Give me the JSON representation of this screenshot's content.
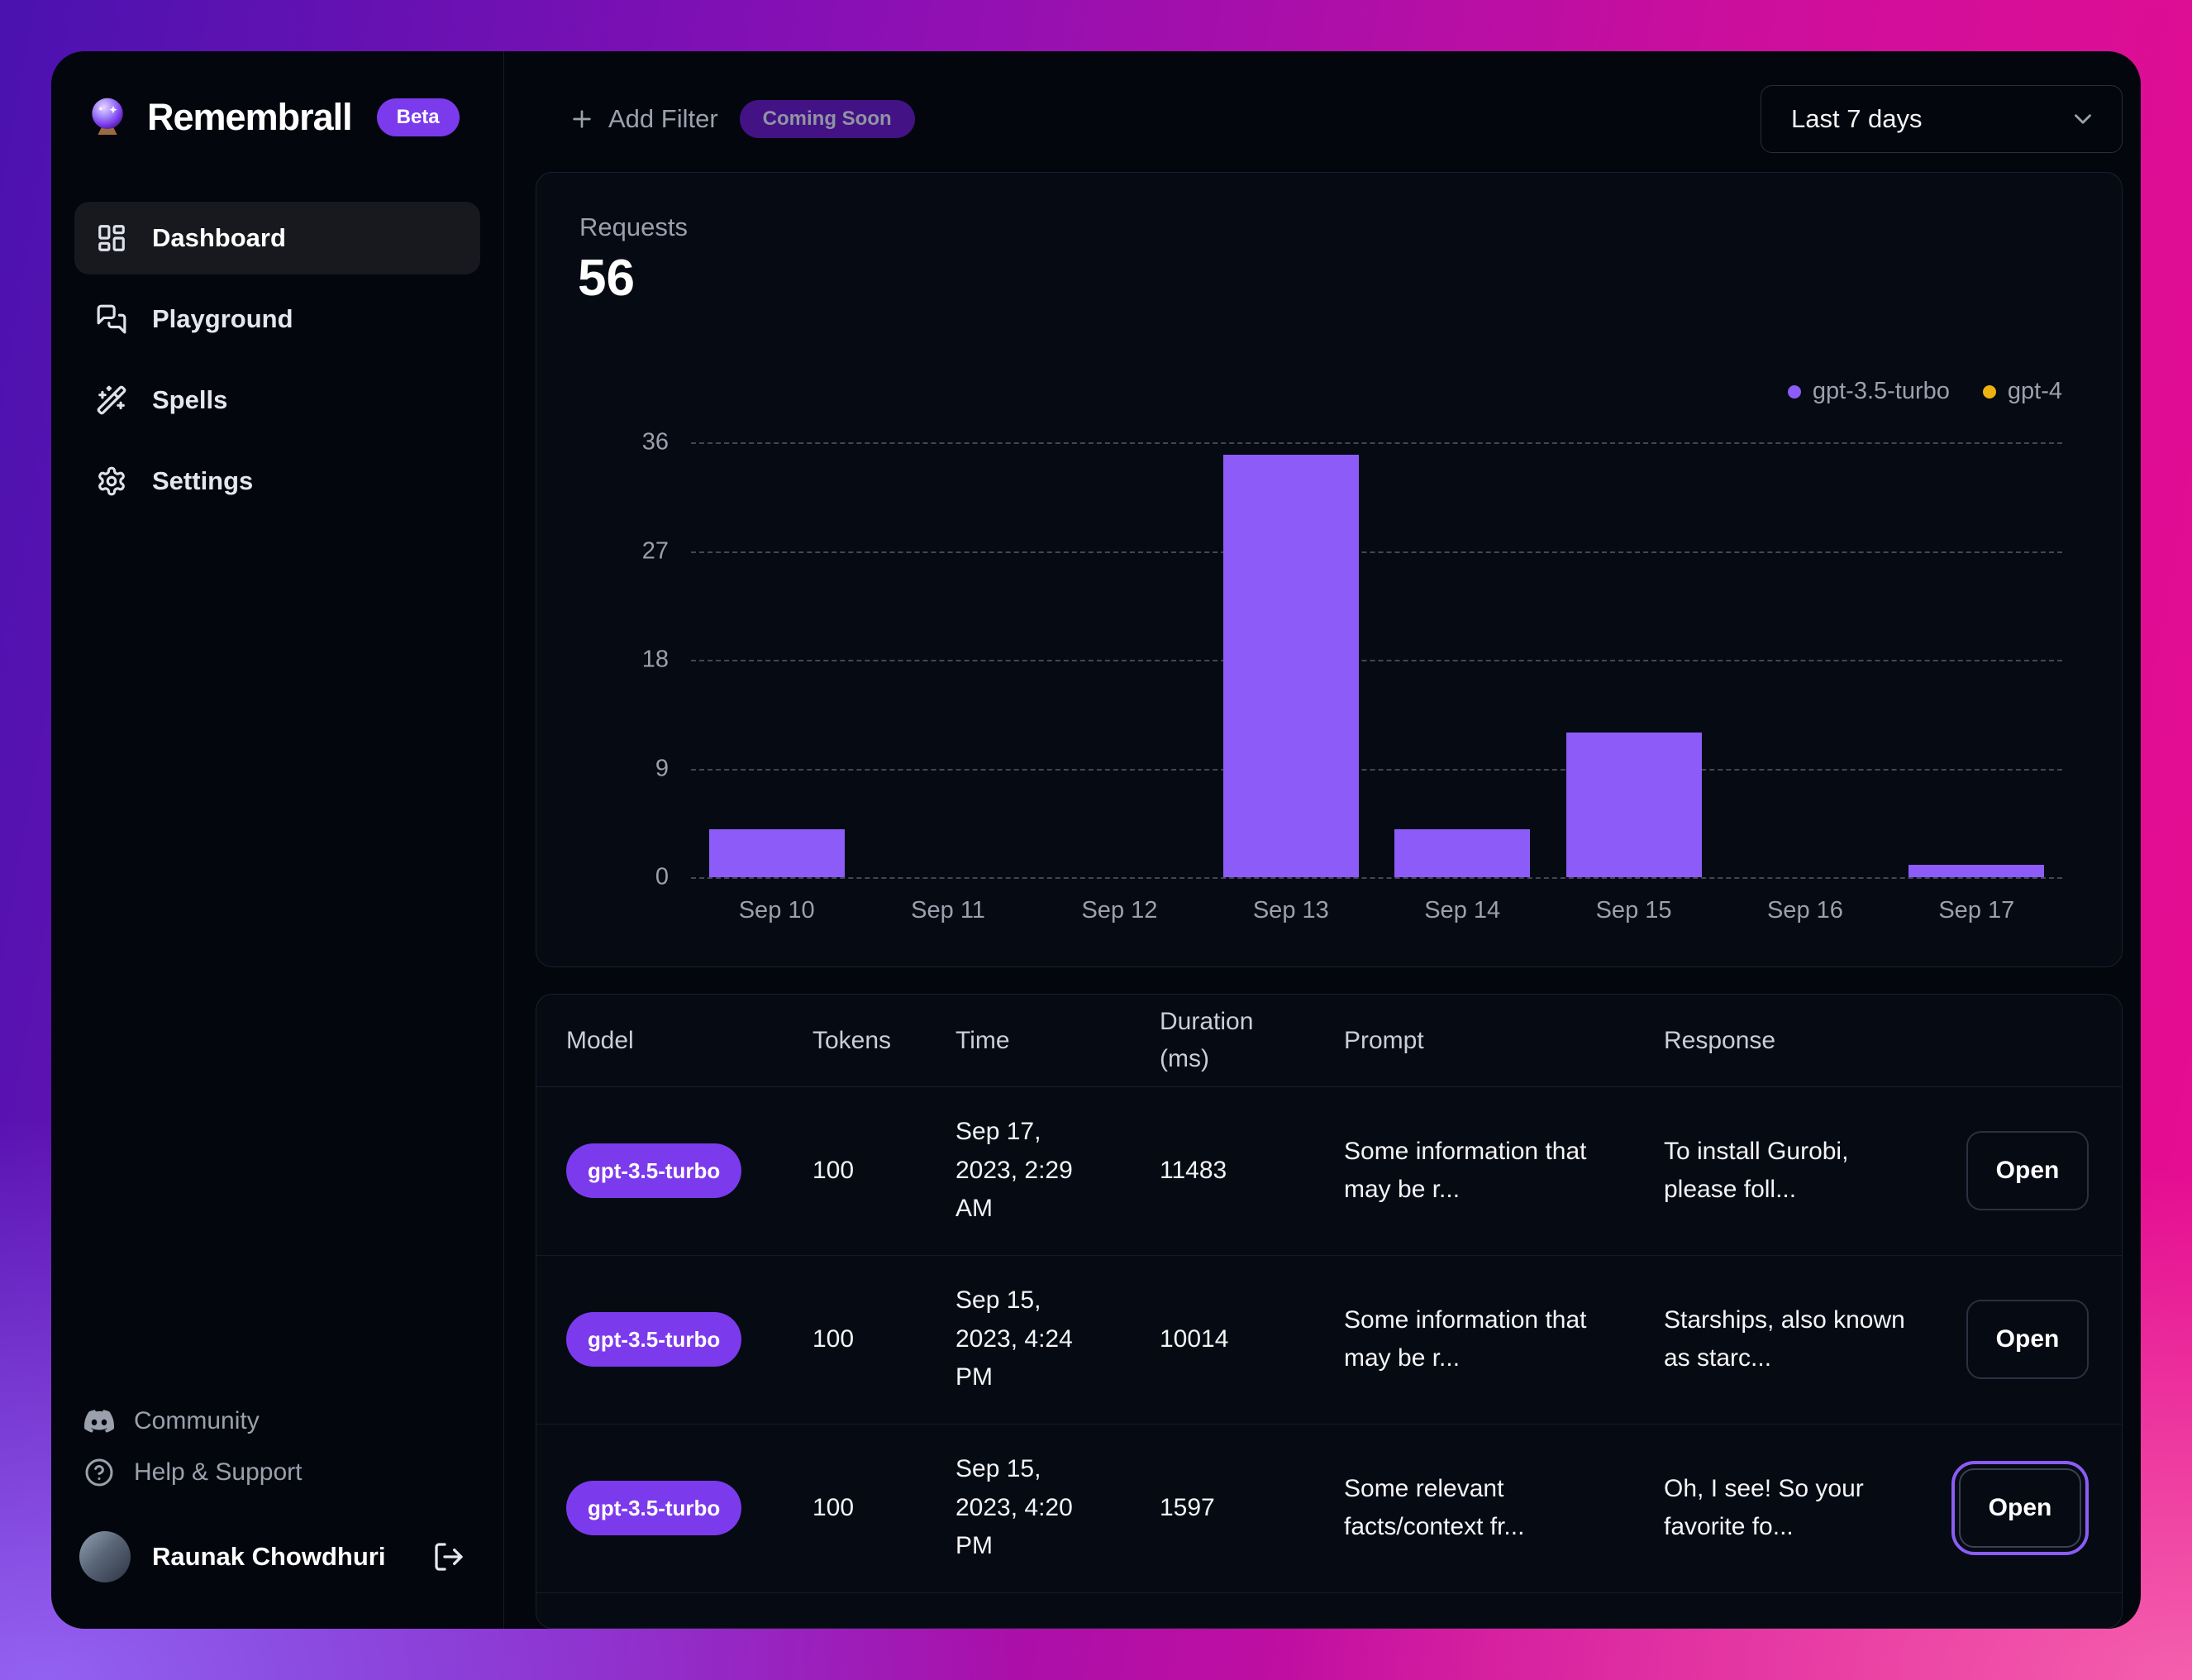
{
  "app": {
    "name": "Remembrall",
    "badge": "Beta"
  },
  "sidebar": {
    "items": [
      {
        "label": "Dashboard",
        "active": true
      },
      {
        "label": "Playground",
        "active": false
      },
      {
        "label": "Spells",
        "active": false
      },
      {
        "label": "Settings",
        "active": false
      }
    ],
    "footer_items": [
      {
        "label": "Community"
      },
      {
        "label": "Help & Support"
      }
    ],
    "user": {
      "name": "Raunak Chowdhuri"
    }
  },
  "topbar": {
    "add_filter_label": "Add Filter",
    "coming_soon_label": "Coming Soon",
    "range_label": "Last 7 days"
  },
  "stats": {
    "requests_label": "Requests",
    "requests_value": "56"
  },
  "chart_data": {
    "type": "bar",
    "title": "Requests",
    "categories": [
      "Sep 10",
      "Sep 11",
      "Sep 12",
      "Sep 13",
      "Sep 14",
      "Sep 15",
      "Sep 16",
      "Sep 17"
    ],
    "series": [
      {
        "name": "gpt-3.5-turbo",
        "color": "#8d5bf7",
        "values": [
          4,
          0,
          0,
          35,
          4,
          12,
          0,
          1
        ]
      },
      {
        "name": "gpt-4",
        "color": "#ecb211",
        "values": [
          0,
          0,
          0,
          0,
          0,
          0,
          0,
          0
        ]
      }
    ],
    "total": 56,
    "ylim": [
      0,
      36
    ],
    "yticks": [
      0,
      9,
      18,
      27,
      36
    ],
    "grid": "horizontal-dashed",
    "legend_position": "top-right"
  },
  "table": {
    "columns": [
      "Model",
      "Tokens",
      "Time",
      "Duration (ms)",
      "Prompt",
      "Response"
    ],
    "rows": [
      {
        "model": "gpt-3.5-turbo",
        "tokens": "100",
        "time": "Sep 17, 2023, 2:29 AM",
        "duration": "11483",
        "prompt": "Some information that may be r...",
        "response": "To install Gurobi, please foll...",
        "open": "Open"
      },
      {
        "model": "gpt-3.5-turbo",
        "tokens": "100",
        "time": "Sep 15, 2023, 4:24 PM",
        "duration": "10014",
        "prompt": "Some information that may be r...",
        "response": "Starships, also known as starc...",
        "open": "Open"
      },
      {
        "model": "gpt-3.5-turbo",
        "tokens": "100",
        "time": "Sep 15, 2023, 4:20 PM",
        "duration": "1597",
        "prompt": "Some relevant facts/context fr...",
        "response": "Oh, I see! So your favorite fo...",
        "open": "Open"
      }
    ]
  },
  "colors": {
    "accent_purple": "#8b5cf6",
    "badge_purple": "#7c3aed",
    "gpt4_yellow": "#ecb211",
    "panel_bg": "#04060d",
    "muted_text": "#9aa1ad",
    "gradient_left": "#4a12b0",
    "gradient_right": "#e90d8f"
  }
}
